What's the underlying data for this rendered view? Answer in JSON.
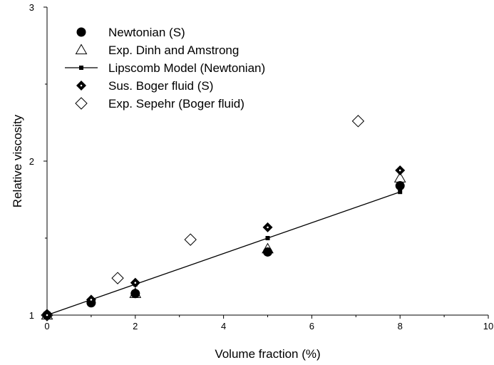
{
  "chart_data": {
    "type": "scatter",
    "title": "",
    "xlabel": "Volume fraction (%)",
    "ylabel": "Relative viscosity",
    "xlim": [
      0,
      10
    ],
    "ylim": [
      1,
      3
    ],
    "x_ticks": [
      "0",
      "2",
      "4",
      "6",
      "8",
      "10"
    ],
    "y_ticks": [
      "1",
      "2",
      "3"
    ],
    "grid": false,
    "legend_position": "top-left",
    "series": [
      {
        "name": "Newtonian (S)",
        "marker": "filled-circle",
        "color": "#000000",
        "points": [
          [
            0,
            1.0
          ],
          [
            1,
            1.08
          ],
          [
            2,
            1.14
          ],
          [
            5,
            1.41
          ],
          [
            8,
            1.84
          ]
        ]
      },
      {
        "name": "Exp. Dinh and Amstrong",
        "marker": "open-triangle",
        "color": "#000000",
        "points": [
          [
            0,
            1.0
          ],
          [
            2,
            1.14
          ],
          [
            5,
            1.43
          ],
          [
            8,
            1.89
          ]
        ]
      },
      {
        "name": "Lipscomb Model (Newtonian)",
        "marker": "small-square-line",
        "color": "#000000",
        "points": [
          [
            0,
            1.0
          ],
          [
            1,
            1.1
          ],
          [
            2,
            1.2
          ],
          [
            5,
            1.5
          ],
          [
            8,
            1.8
          ]
        ]
      },
      {
        "name": "Sus. Boger fluid (S)",
        "marker": "dotted-diamond",
        "color": "#000000",
        "points": [
          [
            0,
            1.0
          ],
          [
            1,
            1.1
          ],
          [
            2,
            1.21
          ],
          [
            5,
            1.57
          ],
          [
            8,
            1.94
          ]
        ]
      },
      {
        "name": "Exp. Sepehr (Boger fluid)",
        "marker": "open-diamond",
        "color": "#000000",
        "points": [
          [
            0,
            1.0
          ],
          [
            1.6,
            1.24
          ],
          [
            3.25,
            1.49
          ],
          [
            7.05,
            2.26
          ]
        ]
      }
    ]
  }
}
